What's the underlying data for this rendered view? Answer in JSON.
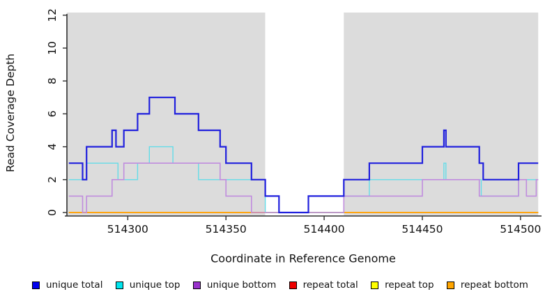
{
  "figure": {
    "kind": "read coverage step plot",
    "panel_color": "#DCDCDC",
    "gap_band_color": "#FFFFFF",
    "axis_color": "#2e2e2e"
  },
  "chart_data": {
    "type": "line",
    "subtype": "step",
    "title": "",
    "xlabel": "Coordinate in Reference Genome",
    "ylabel": "Read Coverage Depth",
    "xlim": [
      514269,
      514510
    ],
    "ylim": [
      0,
      12
    ],
    "x_ticks": [
      514300,
      514350,
      514400,
      514450,
      514500
    ],
    "y_ticks": [
      0,
      2,
      4,
      6,
      8,
      10,
      12
    ],
    "grid": "off",
    "legend_position": "bottom",
    "background_bands": [
      {
        "x0": 514269,
        "x1": 514370,
        "color": "#DCDCDC"
      },
      {
        "x0": 514370,
        "x1": 514410,
        "color": "#FFFFFF"
      },
      {
        "x0": 514410,
        "x1": 514509,
        "color": "#DCDCDC"
      }
    ],
    "x_end": 514509,
    "series": [
      {
        "name": "unique total",
        "color": "#2020DD",
        "legend_color": "#0000EE",
        "width": 2.2,
        "draw_index": 5,
        "steps": [
          [
            514270,
            3
          ],
          [
            514277,
            2
          ],
          [
            514279,
            4
          ],
          [
            514292,
            5
          ],
          [
            514294,
            4
          ],
          [
            514298,
            5
          ],
          [
            514305,
            6
          ],
          [
            514311,
            7
          ],
          [
            514324,
            6
          ],
          [
            514336,
            5
          ],
          [
            514347,
            4
          ],
          [
            514350,
            3
          ],
          [
            514363,
            2
          ],
          [
            514370,
            1
          ],
          [
            514377,
            0
          ],
          [
            514392,
            1
          ],
          [
            514410,
            2
          ],
          [
            514423,
            3
          ],
          [
            514450,
            4
          ],
          [
            514461,
            5
          ],
          [
            514462,
            4
          ],
          [
            514479,
            3
          ],
          [
            514481,
            2
          ],
          [
            514499,
            3
          ]
        ]
      },
      {
        "name": "unique top",
        "color": "#63DCE8",
        "legend_color": "#00E5EE",
        "width": 1.4,
        "draw_index": 3,
        "steps": [
          [
            514270,
            2
          ],
          [
            514279,
            3
          ],
          [
            514295,
            2
          ],
          [
            514305,
            3
          ],
          [
            514311,
            4
          ],
          [
            514323,
            3
          ],
          [
            514336,
            2
          ],
          [
            514370,
            0
          ],
          [
            514410,
            1
          ],
          [
            514423,
            2
          ],
          [
            514461,
            3
          ],
          [
            514462,
            2
          ],
          [
            514480,
            1
          ],
          [
            514499,
            2
          ]
        ]
      },
      {
        "name": "unique bottom",
        "color": "#C08CDE",
        "legend_color": "#9932CC",
        "width": 1.6,
        "draw_index": 4,
        "steps": [
          [
            514270,
            1
          ],
          [
            514277,
            0
          ],
          [
            514279,
            1
          ],
          [
            514292,
            2
          ],
          [
            514298,
            3
          ],
          [
            514347,
            2
          ],
          [
            514350,
            1
          ],
          [
            514363,
            0
          ],
          [
            514410,
            1
          ],
          [
            514450,
            2
          ],
          [
            514479,
            1
          ],
          [
            514499,
            2
          ],
          [
            514503,
            1
          ],
          [
            514508,
            2
          ]
        ]
      },
      {
        "name": "repeat total",
        "color": "#DD2222",
        "legend_color": "#EE0000",
        "width": 1.4,
        "draw_index": 0,
        "steps": [
          [
            514270,
            0
          ]
        ]
      },
      {
        "name": "repeat top",
        "color": "#FFEE00",
        "legend_color": "#FFFF00",
        "width": 1.4,
        "draw_index": 1,
        "steps": [
          [
            514270,
            0
          ]
        ]
      },
      {
        "name": "repeat bottom",
        "color": "#FFA510",
        "legend_color": "#FFA500",
        "width": 2.0,
        "draw_index": 2,
        "steps": [
          [
            514270,
            0
          ]
        ]
      }
    ]
  }
}
